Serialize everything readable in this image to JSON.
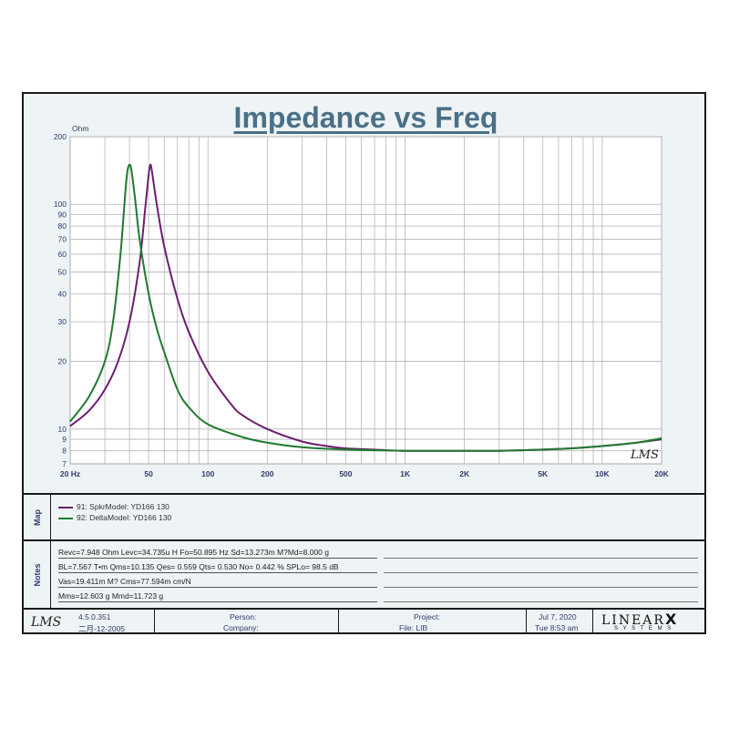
{
  "title": "Impedance vs Freq",
  "chart_data": {
    "type": "line",
    "title": "Impedance vs Freq",
    "ylabel": "Ohm",
    "xlabel": "",
    "x_scale": "log",
    "y_scale": "log",
    "xlim": [
      20,
      20000
    ],
    "ylim": [
      7,
      200
    ],
    "grid": true,
    "x_ticks": [
      20,
      50,
      100,
      200,
      500,
      1000,
      2000,
      5000,
      10000,
      20000
    ],
    "x_tick_labels": [
      "20 Hz",
      "50",
      "100",
      "200",
      "500",
      "1K",
      "2K",
      "5K",
      "10K",
      "20K"
    ],
    "y_ticks": [
      7,
      8,
      9,
      10,
      20,
      30,
      40,
      50,
      60,
      70,
      80,
      90,
      100,
      200
    ],
    "y_tick_labels": [
      "7",
      "8",
      "9",
      "10",
      "20",
      "30",
      "40",
      "50",
      "60",
      "70",
      "80",
      "90",
      "100",
      "200"
    ],
    "series": [
      {
        "name": "91: SpkrModel: YD166   130",
        "color": "#6b1f6e",
        "x": [
          20,
          25,
          30,
          35,
          40,
          45,
          48,
          50,
          51,
          52,
          55,
          60,
          70,
          80,
          100,
          130,
          150,
          200,
          300,
          400,
          500,
          700,
          1000,
          2000,
          3000,
          5000,
          7000,
          10000,
          15000,
          20000
        ],
        "y": [
          10.3,
          12.1,
          15.0,
          20.0,
          30.0,
          55.0,
          95.0,
          135.0,
          150.0,
          140.0,
          100.0,
          65.0,
          38.0,
          27.0,
          18.0,
          13.0,
          11.5,
          10.0,
          8.8,
          8.4,
          8.2,
          8.1,
          8.0,
          8.0,
          8.0,
          8.1,
          8.2,
          8.4,
          8.7,
          9.0
        ]
      },
      {
        "name": "92: DeltaModel: YD166   130",
        "color": "#1f7a2e",
        "x": [
          20,
          25,
          30,
          33,
          36,
          38,
          39,
          40,
          41,
          43,
          45,
          50,
          55,
          60,
          70,
          80,
          100,
          150,
          200,
          300,
          500,
          1000,
          2000,
          3000,
          5000,
          7000,
          10000,
          15000,
          20000
        ],
        "y": [
          10.8,
          14.0,
          20.0,
          30.0,
          60.0,
          110.0,
          140.0,
          150.0,
          140.0,
          100.0,
          70.0,
          40.0,
          28.0,
          22.0,
          15.0,
          12.5,
          10.5,
          9.2,
          8.7,
          8.3,
          8.1,
          8.0,
          8.0,
          8.0,
          8.1,
          8.2,
          8.4,
          8.7,
          9.1
        ]
      }
    ]
  },
  "map": {
    "tab_label": "Map",
    "legend": [
      {
        "label": "91: SpkrModel: YD166   130",
        "color": "#6b1f6e"
      },
      {
        "label": "92: DeltaModel: YD166   130",
        "color": "#1f7a2e"
      }
    ]
  },
  "notes": {
    "tab_label": "Notes",
    "lines": [
      "Revc=7.948 Ohm  Levc=34.735u H  Fo=50.895 Hz  Sd=13.273m M?Md=8.000 g",
      "BL=7.567 T•m  Qms=10.135  Qes= 0.559  Qts= 0.530  No= 0.442 %  SPLo= 98.5 dB",
      "Vas=19.411m M? Cms=77.594m cm/N",
      "Mms=12.603 g  Mmd=11.723 g"
    ]
  },
  "footer": {
    "logo": "LMS",
    "version": "4.5.0.351",
    "build_date": "二月-12-2005",
    "person_label": "Person:",
    "company_label": "Company:",
    "project_label": "Project:",
    "file_label": "File: LIB",
    "date": "Jul 7, 2020",
    "time": "Tue  8:53 am",
    "brand_top": "LINEAR",
    "brand_x": "X",
    "brand_bottom": "S Y S T E M S"
  }
}
